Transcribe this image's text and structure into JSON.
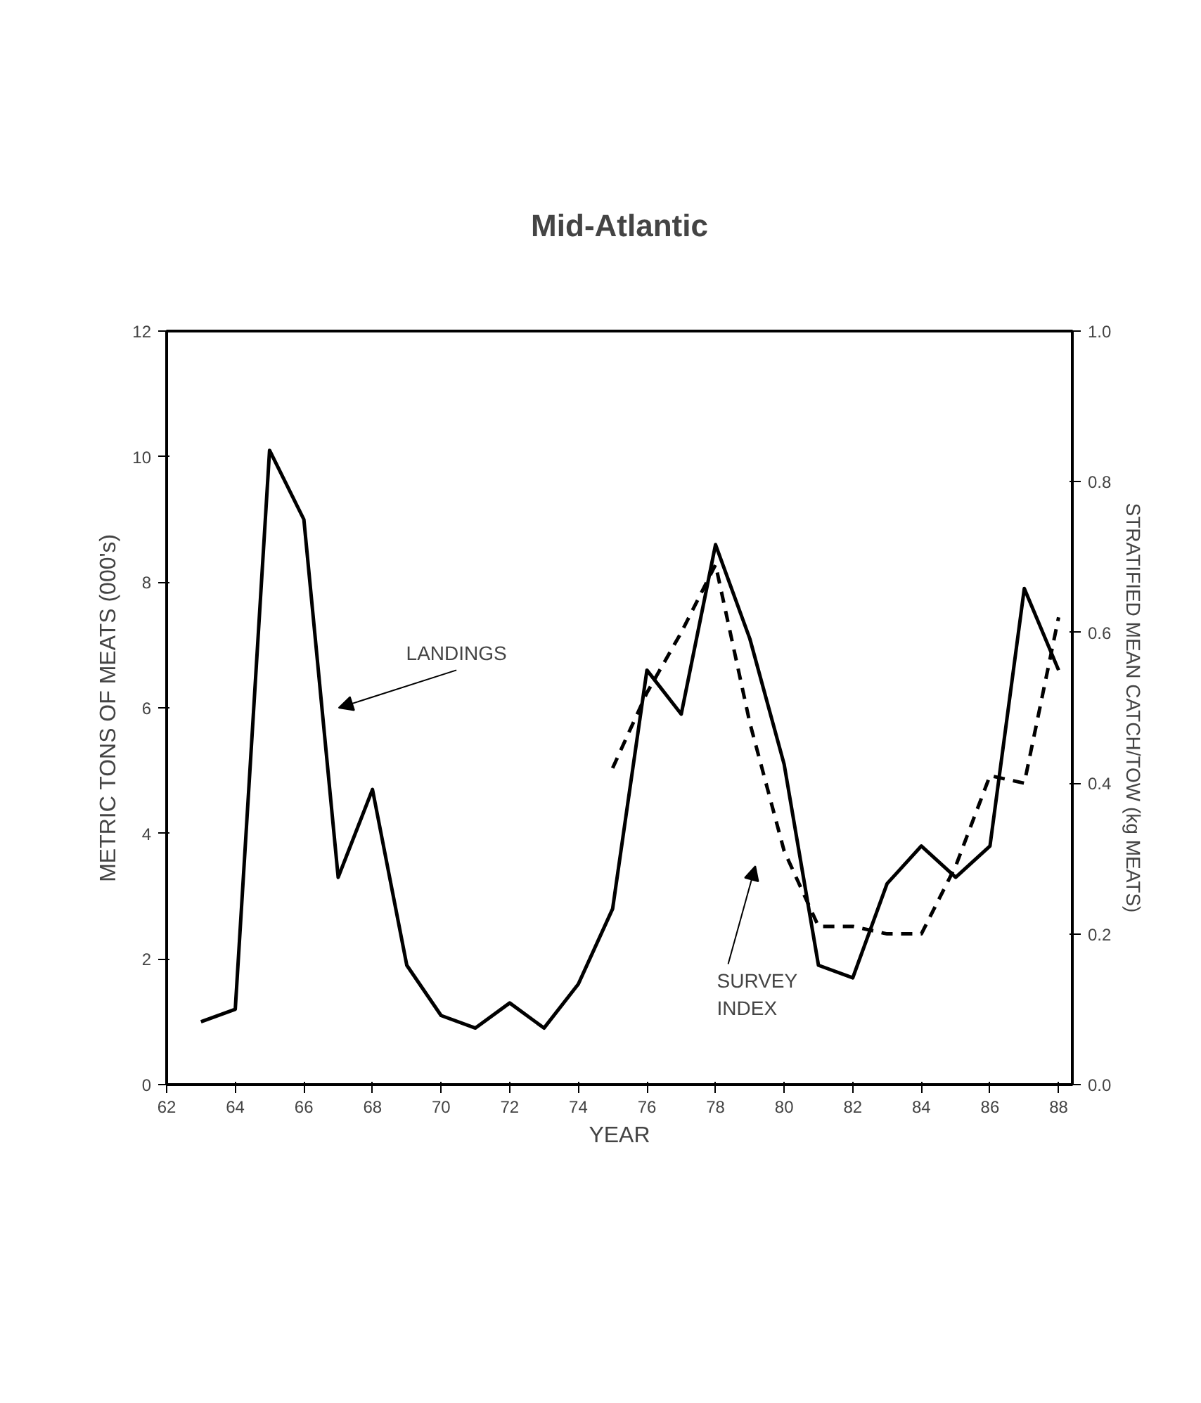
{
  "chart_data": {
    "type": "line",
    "title": "Mid-Atlantic",
    "xlabel": "YEAR",
    "ylabel": "METRIC TONS OF MEATS (000's)",
    "y2label": "STRATIFIED MEAN CATCH/TOW (kg MEATS)",
    "xlim": [
      62,
      88.4
    ],
    "xticks": [
      62,
      64,
      66,
      68,
      70,
      72,
      74,
      76,
      78,
      80,
      82,
      84,
      86,
      88
    ],
    "ylim": [
      0,
      12
    ],
    "yticks": [
      0,
      2,
      4,
      6,
      8,
      10,
      12
    ],
    "y2lim": [
      0,
      1
    ],
    "y2ticks": [
      {
        "value": 0,
        "label": "0.0"
      },
      0.2,
      0.4,
      0.6,
      0.8,
      {
        "value": 1,
        "label": "1.0"
      }
    ],
    "grid": false,
    "series": [
      {
        "color": "#000000",
        "line_style": "solid",
        "x": [
          63,
          64,
          65,
          66,
          67,
          68,
          69,
          70,
          71,
          72,
          73,
          74,
          75,
          76,
          77,
          78,
          79,
          80,
          81,
          82,
          83,
          84,
          85,
          86,
          87,
          88
        ],
        "values": [
          1.0,
          1.2,
          10.1,
          9.0,
          3.3,
          4.7,
          1.9,
          1.1,
          0.9,
          1.3,
          0.9,
          1.6,
          2.8,
          6.6,
          5.9,
          8.6,
          7.1,
          5.1,
          1.9,
          1.7,
          3.2,
          3.8,
          3.3,
          3.8,
          7.9,
          6.6
        ]
      },
      {
        "color": "#000000",
        "line_style": "dashed",
        "axis": "y2",
        "x": [
          75,
          76,
          77,
          78,
          79,
          80,
          81,
          82,
          83,
          84,
          85,
          86,
          87,
          88
        ],
        "values": [
          0.42,
          0.52,
          0.6,
          0.69,
          0.48,
          0.31,
          0.21,
          0.21,
          0.2,
          0.2,
          0.29,
          0.41,
          0.4,
          0.62
        ]
      }
    ],
    "annotations": [
      "LANDINGS",
      "SURVEY\nINDEX"
    ]
  }
}
